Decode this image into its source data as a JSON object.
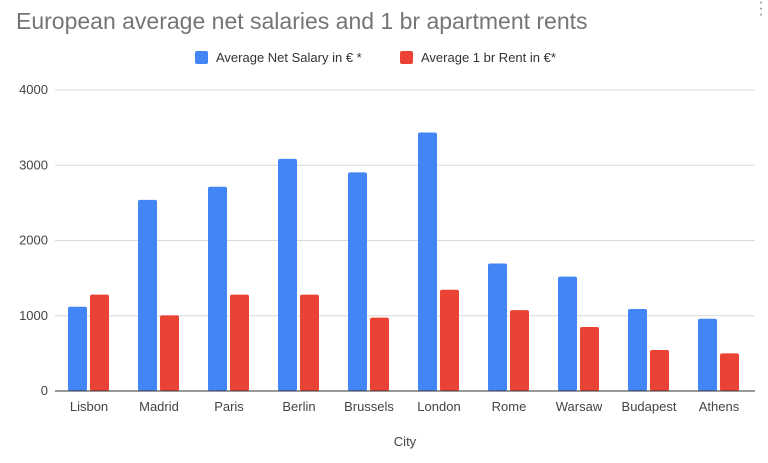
{
  "chart_data": {
    "type": "bar",
    "title": "European average net salaries and 1 br apartment rents",
    "xlabel": "City",
    "ylabel": "",
    "ylim": [
      0,
      4000
    ],
    "yticks": [
      "0",
      "1000",
      "2000",
      "3000",
      "4000"
    ],
    "grid": true,
    "legend_position": "top",
    "categories": [
      "Lisbon",
      "Madrid",
      "Paris",
      "Berlin",
      "Brussels",
      "London",
      "Rome",
      "Warsaw",
      "Budapest",
      "Athens"
    ],
    "series": [
      {
        "name": "Average Net Salary in € *",
        "color": "#4285f4",
        "values": [
          1120,
          2540,
          2715,
          3085,
          2905,
          3435,
          1695,
          1520,
          1090,
          960
        ]
      },
      {
        "name": "Average 1 br Rent in €*",
        "color": "#ea4335",
        "values": [
          1280,
          1005,
          1280,
          1280,
          975,
          1345,
          1075,
          850,
          545,
          500
        ]
      }
    ]
  },
  "menu_icon": "more-vert-icon"
}
